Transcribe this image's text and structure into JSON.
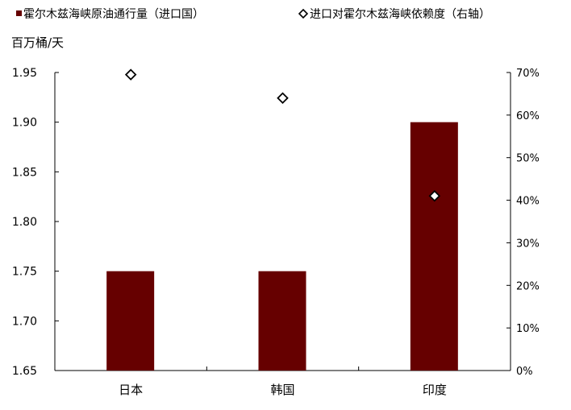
{
  "chart_data": {
    "type": "bar",
    "categories": [
      "日本",
      "韩国",
      "印度"
    ],
    "series": [
      {
        "name": "霍尔木兹海峡原油通行量（进口国）",
        "type": "bar",
        "axis": "left",
        "values": [
          1.75,
          1.75,
          1.9
        ],
        "color": "#660000"
      },
      {
        "name": "进口对霍尔木兹海峡依赖度（右轴）",
        "type": "scatter",
        "marker": "diamond",
        "axis": "right",
        "values": [
          69.5,
          64,
          41
        ]
      }
    ],
    "ylabel": "百万桶/天",
    "ylim": [
      1.65,
      1.95
    ],
    "yticks": [
      "1.65",
      "1.70",
      "1.75",
      "1.80",
      "1.85",
      "1.90",
      "1.95"
    ],
    "y2lim": [
      0,
      70
    ],
    "y2ticks": [
      "0%",
      "10%",
      "20%",
      "30%",
      "40%",
      "50%",
      "60%",
      "70%"
    ],
    "grid": false,
    "legend_position": "top"
  }
}
